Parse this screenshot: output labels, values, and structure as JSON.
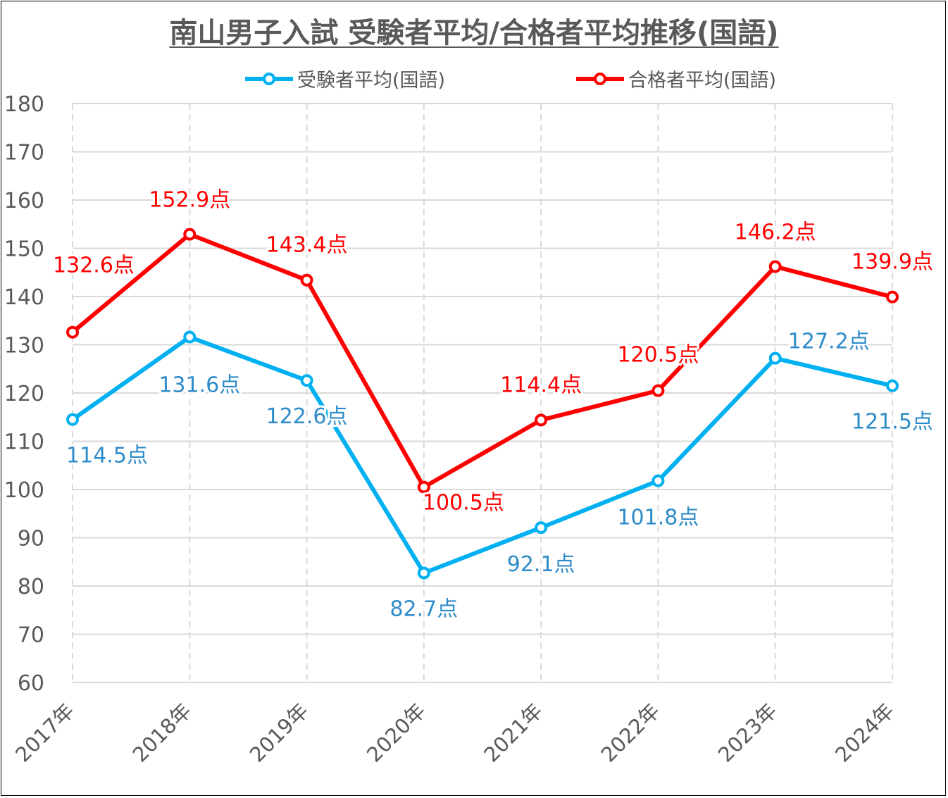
{
  "chart_data": {
    "type": "line",
    "title": "南山男子入試 受験者平均/合格者平均推移(国語)",
    "xlabel": "",
    "ylabel": "",
    "categories": [
      "2017年",
      "2018年",
      "2019年",
      "2020年",
      "2021年",
      "2022年",
      "2023年",
      "2024年"
    ],
    "ylim": [
      60,
      180
    ],
    "yticks": [
      60,
      70,
      80,
      90,
      100,
      110,
      120,
      130,
      140,
      150,
      160,
      170,
      180
    ],
    "grid": true,
    "legend_position": "top",
    "label_suffix": "点",
    "series": [
      {
        "name": "受験者平均(国語)",
        "color": "#00B0F0",
        "label_color": "#2E8BC9",
        "values": [
          114.5,
          131.6,
          122.6,
          82.7,
          92.1,
          101.8,
          127.2,
          121.5
        ]
      },
      {
        "name": "合格者平均(国語)",
        "color": "#FF0000",
        "label_color": "#FF0000",
        "values": [
          132.6,
          152.9,
          143.4,
          100.5,
          114.4,
          120.5,
          146.2,
          139.9
        ]
      }
    ]
  }
}
